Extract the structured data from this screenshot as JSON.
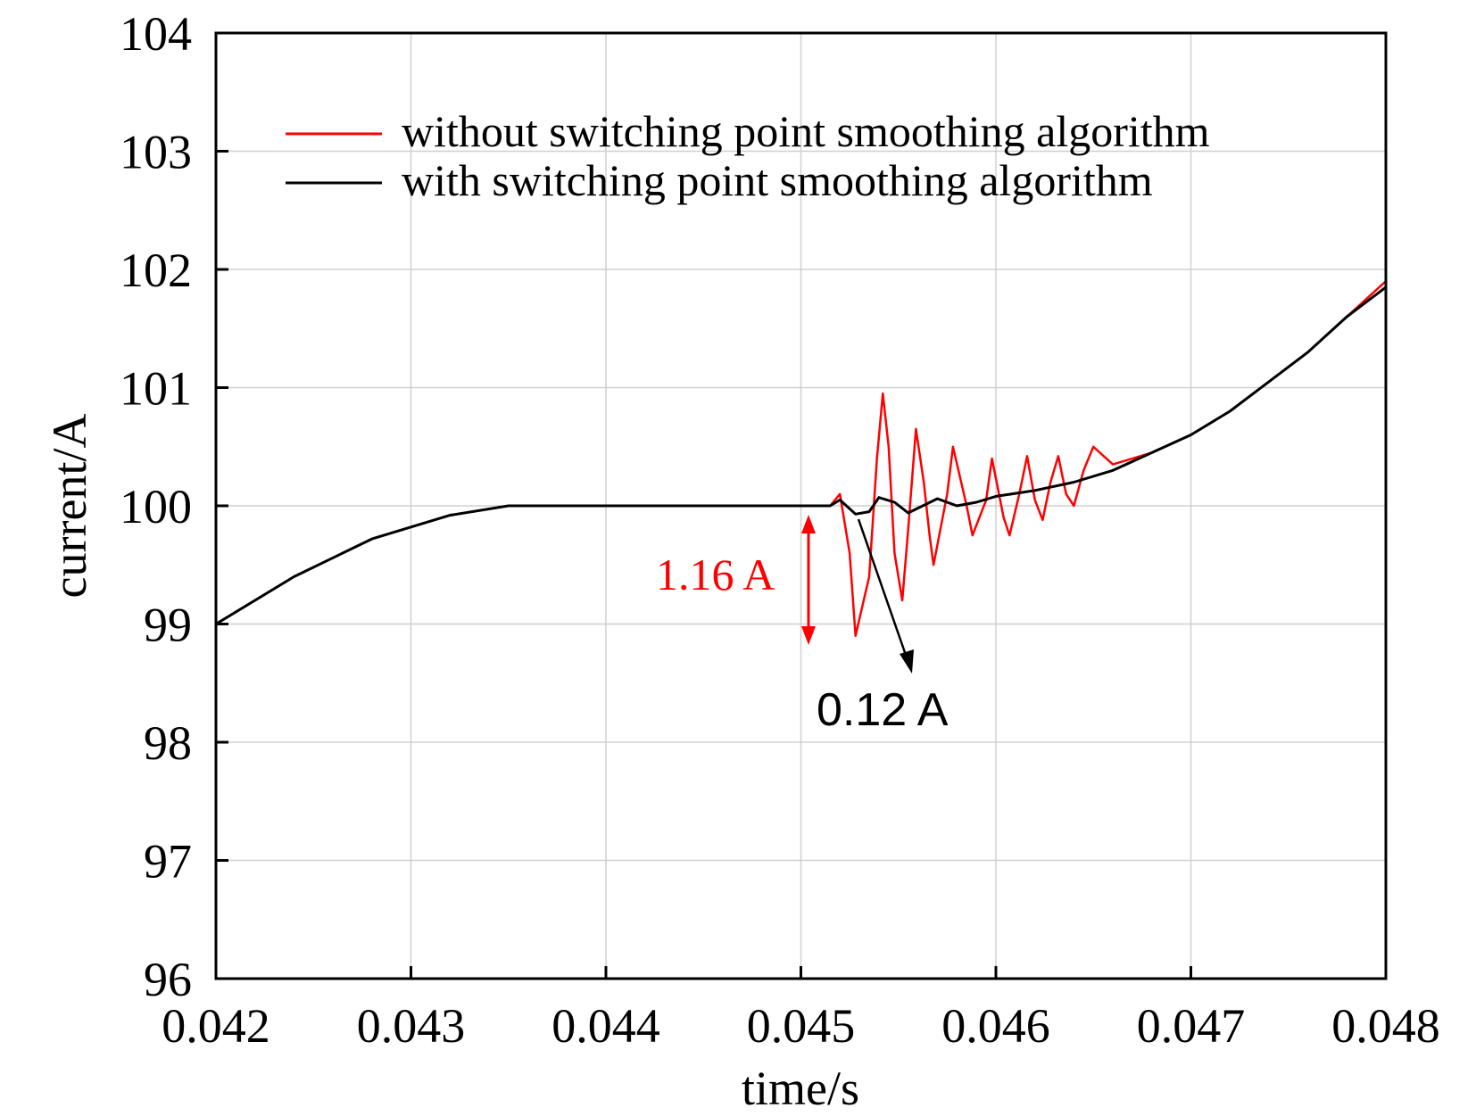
{
  "chart_data": {
    "type": "line",
    "title": "",
    "xlabel": "time/s",
    "ylabel": "current/A",
    "xlim": [
      0.042,
      0.048
    ],
    "ylim": [
      96,
      104
    ],
    "x_ticks": [
      "0.042",
      "0.043",
      "0.044",
      "0.045",
      "0.046",
      "0.047",
      "0.048"
    ],
    "y_ticks": [
      "96",
      "97",
      "98",
      "99",
      "100",
      "101",
      "102",
      "103",
      "104"
    ],
    "grid": true,
    "legend_position": "top",
    "series": [
      {
        "name": "without switching point smoothing algorithm",
        "color": "#ff0000",
        "x": [
          0.042,
          0.0424,
          0.0428,
          0.0432,
          0.0435,
          0.0438,
          0.044,
          0.0445,
          0.04515,
          0.0452,
          0.04525,
          0.04528,
          0.04535,
          0.04539,
          0.04542,
          0.04545,
          0.04548,
          0.04552,
          0.04555,
          0.04559,
          0.04563,
          0.04566,
          0.04568,
          0.04575,
          0.04578,
          0.04585,
          0.04588,
          0.04595,
          0.04598,
          0.04604,
          0.04607,
          0.04612,
          0.04616,
          0.0462,
          0.04624,
          0.04628,
          0.04632,
          0.04636,
          0.0464,
          0.04645,
          0.0465,
          0.0466,
          0.0468,
          0.047,
          0.0472,
          0.0474,
          0.0476,
          0.0478,
          0.048
        ],
        "y": [
          99.0,
          99.4,
          99.72,
          99.92,
          100.0,
          100.0,
          100.0,
          100.0,
          100.0,
          100.1,
          99.6,
          98.9,
          99.4,
          100.4,
          100.95,
          100.5,
          99.6,
          99.2,
          99.8,
          100.65,
          100.2,
          99.75,
          99.5,
          100.1,
          100.5,
          100.0,
          99.75,
          100.05,
          100.4,
          99.9,
          99.75,
          100.1,
          100.42,
          100.05,
          99.88,
          100.2,
          100.42,
          100.1,
          100.0,
          100.3,
          100.5,
          100.35,
          100.45,
          100.6,
          100.8,
          101.05,
          101.3,
          101.6,
          101.9
        ]
      },
      {
        "name": "with switching point smoothing algorithm",
        "color": "#000000",
        "x": [
          0.042,
          0.0424,
          0.0428,
          0.0432,
          0.0435,
          0.0438,
          0.044,
          0.0445,
          0.04515,
          0.0452,
          0.04528,
          0.04535,
          0.0454,
          0.04548,
          0.04555,
          0.0456,
          0.04565,
          0.0457,
          0.0458,
          0.0459,
          0.046,
          0.0462,
          0.0464,
          0.0466,
          0.0468,
          0.047,
          0.0472,
          0.0474,
          0.0476,
          0.0478,
          0.048
        ],
        "y": [
          99.0,
          99.4,
          99.72,
          99.92,
          100.0,
          100.0,
          100.0,
          100.0,
          100.0,
          100.05,
          99.93,
          99.95,
          100.07,
          100.03,
          99.94,
          99.98,
          100.02,
          100.06,
          100.0,
          100.03,
          100.08,
          100.13,
          100.2,
          100.3,
          100.45,
          100.6,
          100.8,
          101.05,
          101.3,
          101.6,
          101.85
        ]
      }
    ],
    "annotations": [
      {
        "text": "1.16 A",
        "color": "#ff0000"
      },
      {
        "text": "0.12 A",
        "color": "#000000"
      }
    ]
  }
}
